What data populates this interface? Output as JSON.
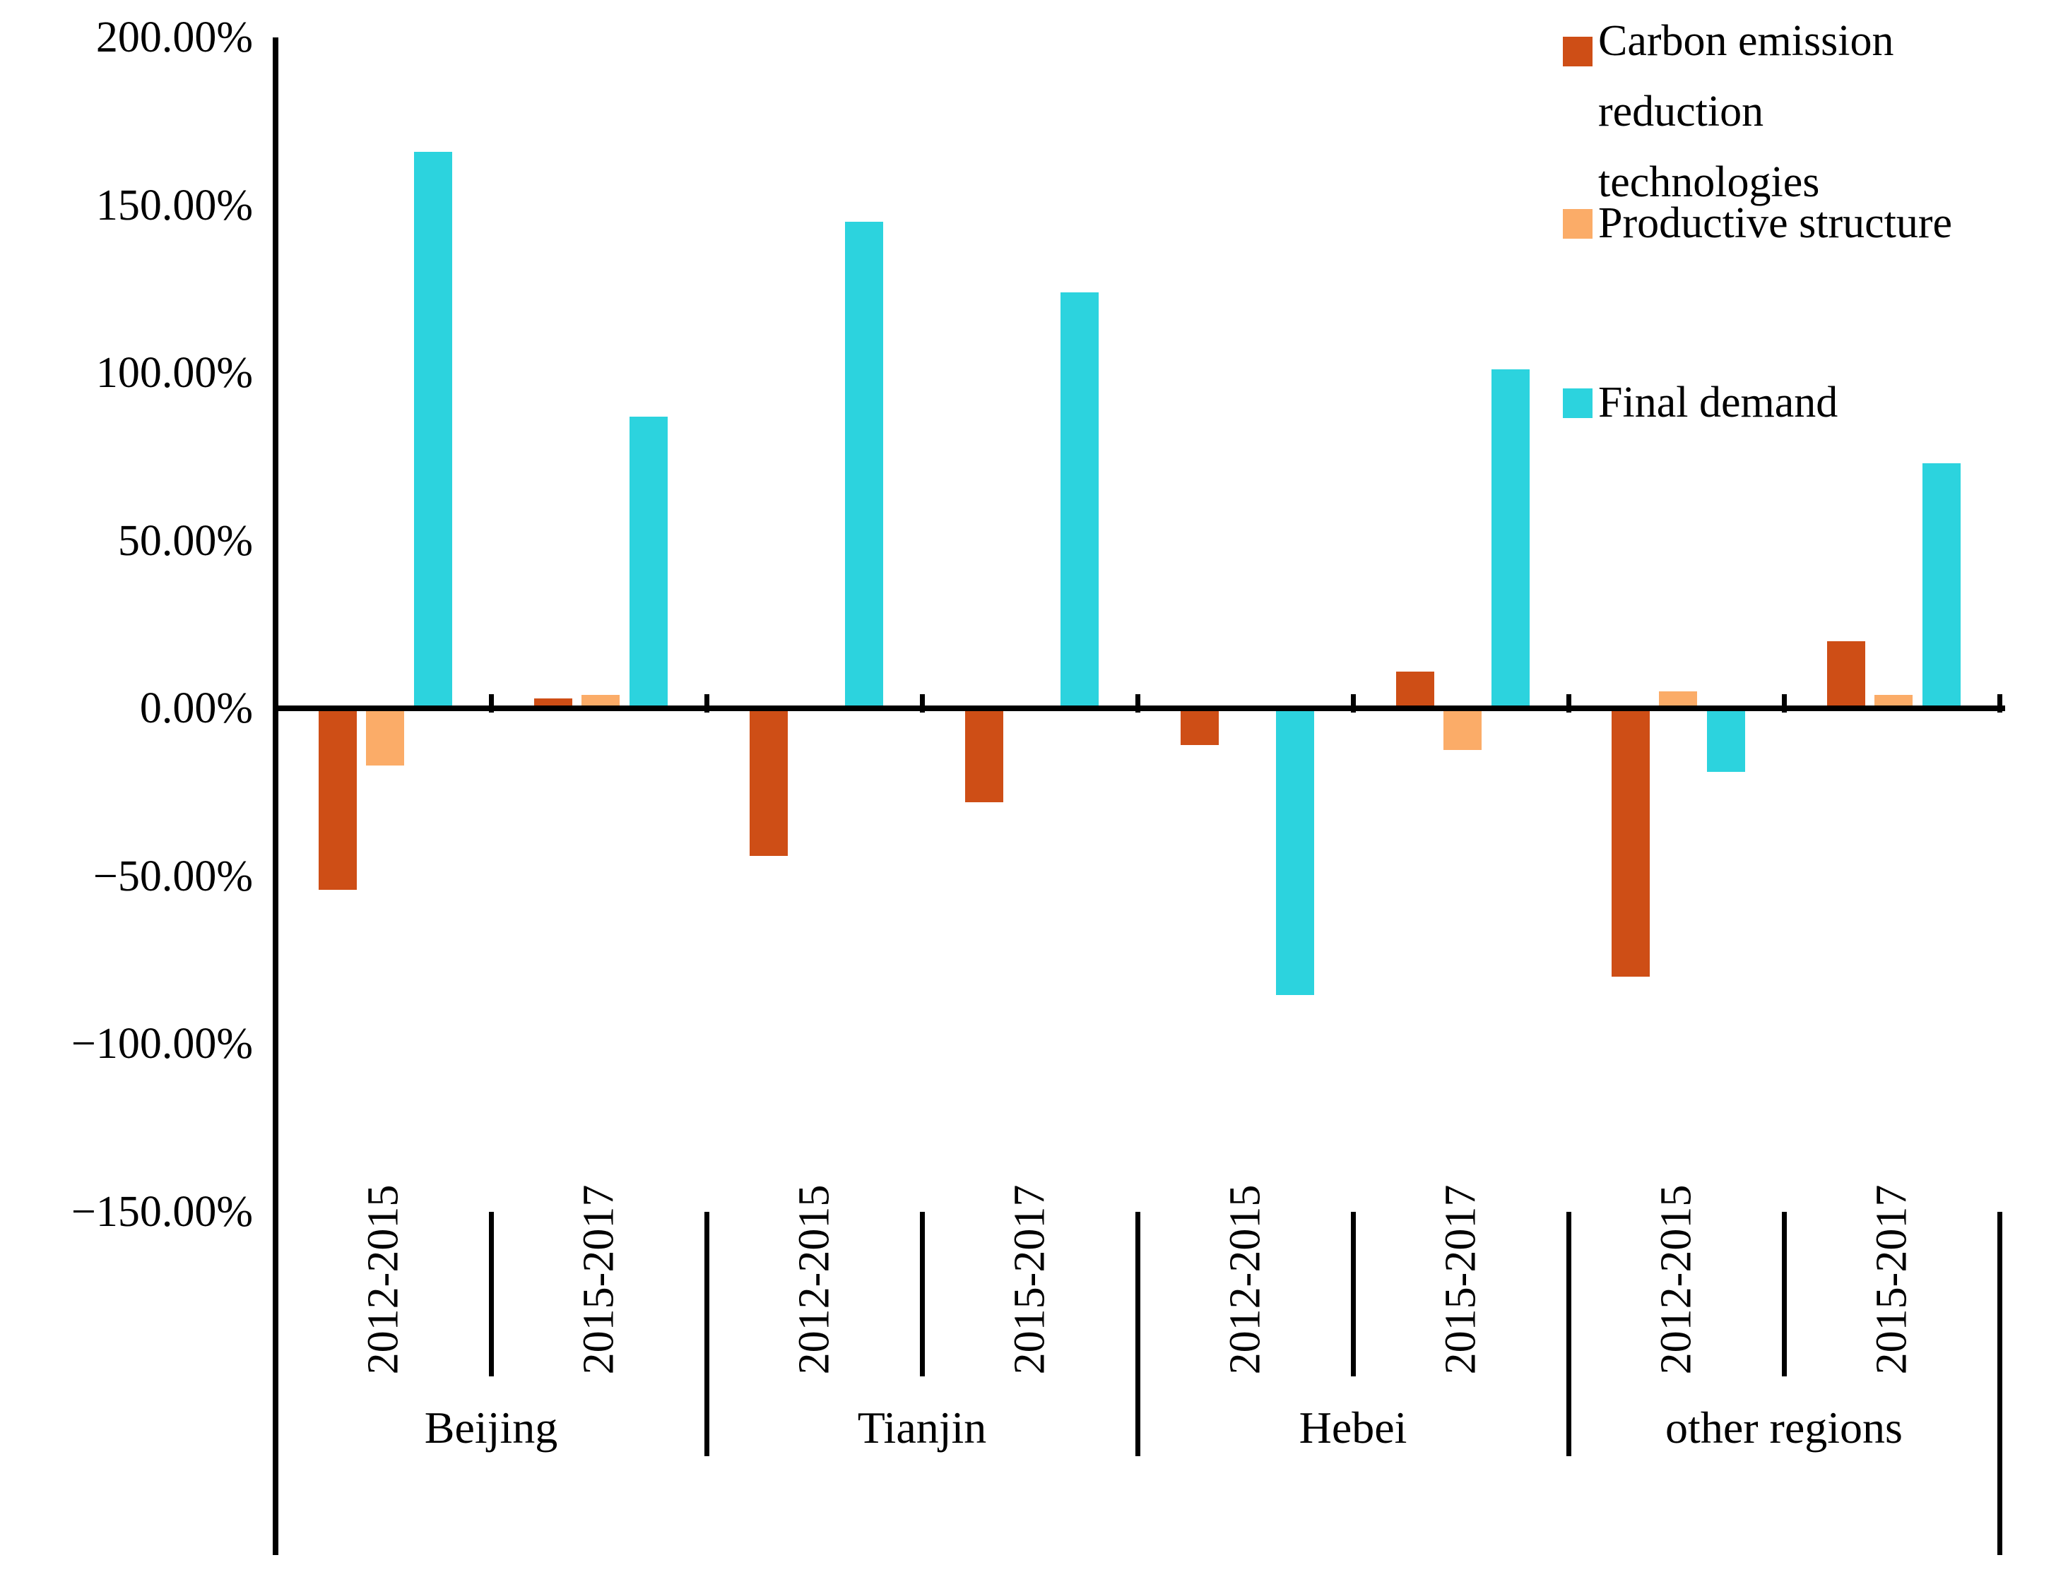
{
  "chart_data": {
    "type": "bar",
    "title": "",
    "xlabel": "",
    "ylabel": "",
    "unit": "%",
    "grid": false,
    "legend_position": "top-right",
    "background": "#FFFFFF",
    "axis_color": "#000000",
    "ylim": [
      -150,
      200
    ],
    "y_axis": {
      "tick_values": [
        200,
        150,
        100,
        50,
        0,
        -50,
        -100,
        -150
      ],
      "tick_labels": [
        "200.00%",
        "150.00%",
        "100.00%",
        "50.00%",
        "0.00%",
        "−50.00%",
        "−100.00%",
        "−150.00%"
      ]
    },
    "regions": [
      {
        "label": "Beijing"
      },
      {
        "label": "Tianjin"
      },
      {
        "label": "Hebei"
      },
      {
        "label": "other regions"
      }
    ],
    "categories": [
      {
        "region": "Beijing",
        "period": "2012-2015"
      },
      {
        "region": "Beijing",
        "period": "2015-2017"
      },
      {
        "region": "Tianjin",
        "period": "2012-2015"
      },
      {
        "region": "Tianjin",
        "period": "2015-2017"
      },
      {
        "region": "Hebei",
        "period": "2012-2015"
      },
      {
        "region": "Hebei",
        "period": "2015-2017"
      },
      {
        "region": "other regions",
        "period": "2012-2015"
      },
      {
        "region": "other regions",
        "period": "2015-2017"
      }
    ],
    "series": [
      {
        "name": "Carbon emission reduction technologies",
        "color": "#CE4E16",
        "values": [
          -54,
          3,
          -44,
          -28,
          -11,
          11,
          -80,
          20
        ]
      },
      {
        "name": "Productive structure",
        "color": "#FBAC68",
        "values": [
          -17,
          4,
          0.5,
          0.5,
          0.5,
          -12.5,
          5,
          4
        ]
      },
      {
        "name": "Final demand",
        "color": "#2CD3DE",
        "values": [
          166,
          87,
          145,
          124,
          -85.5,
          101,
          -19,
          73
        ]
      }
    ]
  }
}
